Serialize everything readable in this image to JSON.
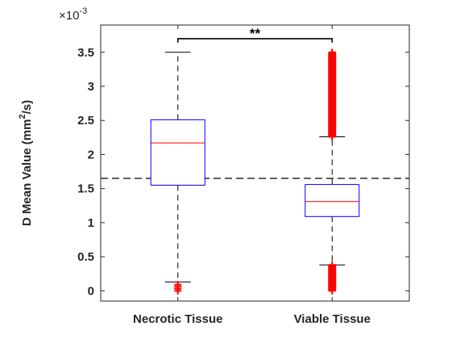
{
  "chart_data": {
    "type": "box",
    "title": "",
    "xlabel": "",
    "ylabel": "D Mean Value (mm²/s)",
    "ylabel_parts": {
      "main": "D Mean Value (mm",
      "sup": "2",
      "tail": "/s)"
    },
    "y_exponent": {
      "base": "×10",
      "power": "-3"
    },
    "ylim": [
      -0.15,
      3.9
    ],
    "yticks": [
      0,
      0.5,
      1,
      1.5,
      2,
      2.5,
      3,
      3.5
    ],
    "ytick_labels": [
      "0",
      "0.5",
      "1",
      "1.5",
      "2",
      "2.5",
      "3",
      "3.5"
    ],
    "grid": false,
    "categories": [
      "Necrotic Tissue",
      "Viable Tissue"
    ],
    "boxes": [
      {
        "name": "Necrotic Tissue",
        "whisker_low": 0.13,
        "q1": 1.55,
        "median": 2.17,
        "q3": 2.51,
        "whisker_high": 3.5,
        "outliers_low": [
          0.0,
          0.03,
          0.06,
          0.09
        ],
        "outliers_high": []
      },
      {
        "name": "Viable Tissue",
        "whisker_low": 0.38,
        "q1": 1.09,
        "median": 1.31,
        "q3": 1.56,
        "whisker_high": 2.26,
        "outliers_low_range": [
          0.0,
          0.38
        ],
        "outliers_high_range": [
          2.26,
          3.5
        ]
      }
    ],
    "reference_line": {
      "y": 1.65,
      "style": "dashed"
    },
    "significance": {
      "label": "**",
      "from": "Necrotic Tissue",
      "to": "Viable Tissue",
      "y": 3.7
    },
    "colors": {
      "box": "#0000ff",
      "median": "#ff0000",
      "outlier": "#ff0000",
      "whisker": "#000000",
      "axis": "#262626"
    }
  }
}
